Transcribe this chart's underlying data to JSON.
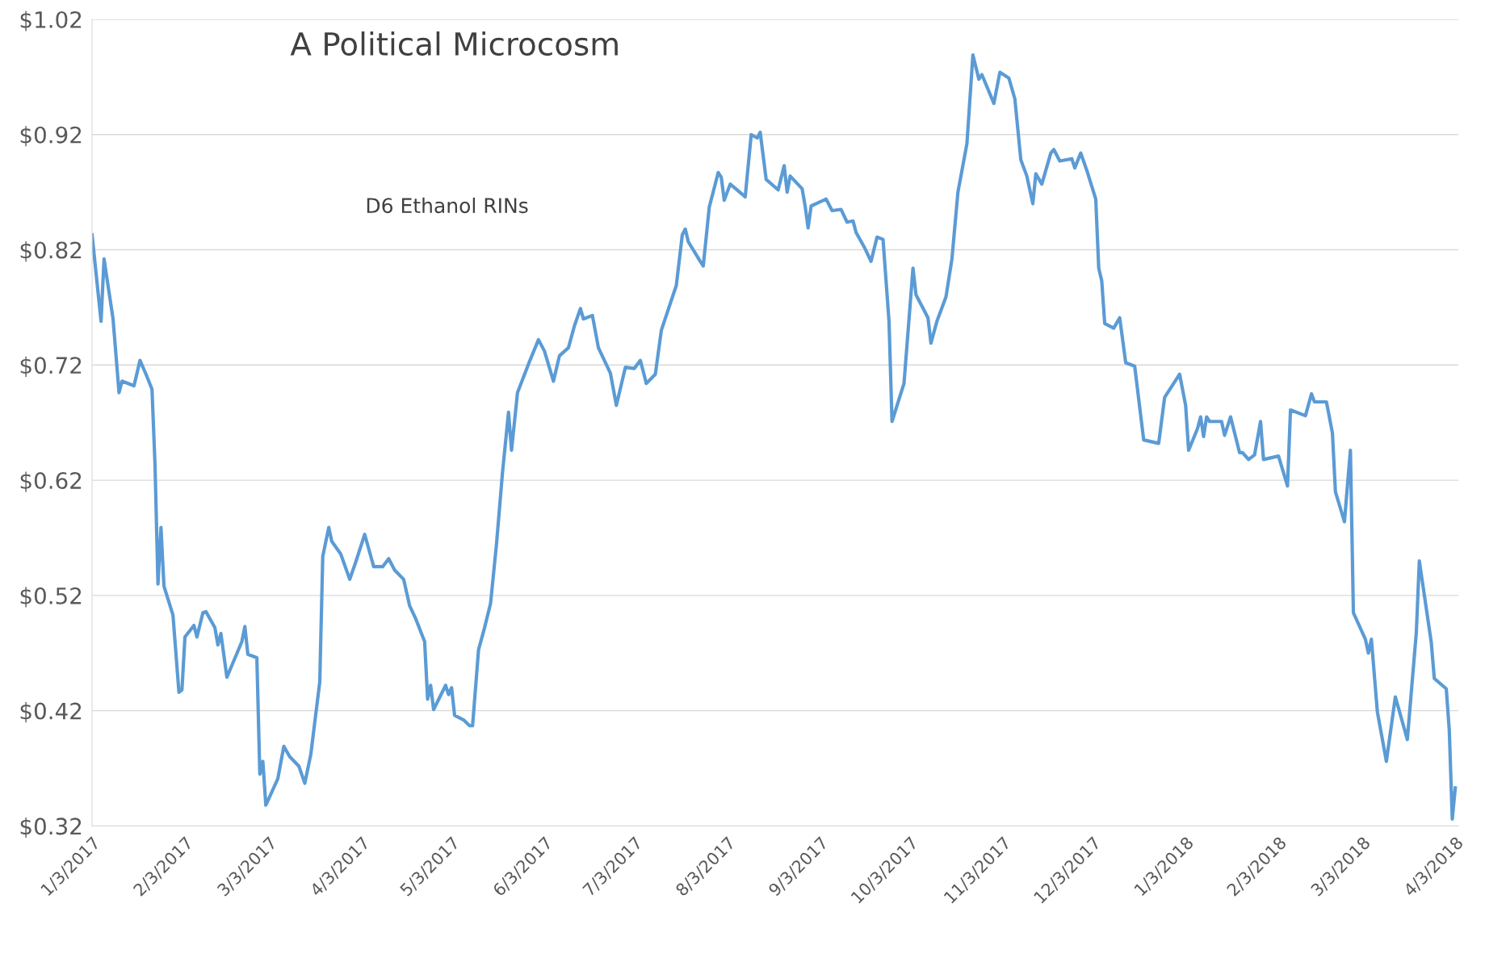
{
  "chart_data": {
    "type": "line",
    "title": "A Political Microcosm",
    "annotations": [
      "D6 Ethanol RINs"
    ],
    "series": [
      {
        "color": "#5b9bd5",
        "x": [
          "2017-01-03",
          "2017-01-06",
          "2017-01-07",
          "2017-01-10",
          "2017-01-12",
          "2017-01-13",
          "2017-01-17",
          "2017-01-19",
          "2017-01-21",
          "2017-01-23",
          "2017-01-24",
          "2017-01-25",
          "2017-01-26",
          "2017-01-27",
          "2017-01-30",
          "2017-02-01",
          "2017-02-02",
          "2017-02-03",
          "2017-02-06",
          "2017-02-07",
          "2017-02-09",
          "2017-02-10",
          "2017-02-13",
          "2017-02-14",
          "2017-02-15",
          "2017-02-17",
          "2017-02-22",
          "2017-02-23",
          "2017-02-24",
          "2017-02-27",
          "2017-02-28",
          "2017-03-01",
          "2017-03-02",
          "2017-03-06",
          "2017-03-08",
          "2017-03-10",
          "2017-03-13",
          "2017-03-15",
          "2017-03-17",
          "2017-03-20",
          "2017-03-21",
          "2017-03-23",
          "2017-03-24",
          "2017-03-27",
          "2017-03-30",
          "2017-04-01",
          "2017-04-04",
          "2017-04-07",
          "2017-04-10",
          "2017-04-12",
          "2017-04-14",
          "2017-04-17",
          "2017-04-19",
          "2017-04-21",
          "2017-04-24",
          "2017-04-25",
          "2017-04-26",
          "2017-04-27",
          "2017-05-01",
          "2017-05-02",
          "2017-05-03",
          "2017-05-04",
          "2017-05-07",
          "2017-05-09",
          "2017-05-10",
          "2017-05-12",
          "2017-05-14",
          "2017-05-16",
          "2017-05-18",
          "2017-05-20",
          "2017-05-22",
          "2017-05-23",
          "2017-05-25",
          "2017-05-29",
          "2017-06-01",
          "2017-06-03",
          "2017-06-06",
          "2017-06-08",
          "2017-06-11",
          "2017-06-13",
          "2017-06-15",
          "2017-06-16",
          "2017-06-19",
          "2017-06-21",
          "2017-06-25",
          "2017-06-27",
          "2017-06-30",
          "2017-07-03",
          "2017-07-05",
          "2017-07-07",
          "2017-07-10",
          "2017-07-12",
          "2017-07-17",
          "2017-07-19",
          "2017-07-20",
          "2017-07-21",
          "2017-07-25",
          "2017-07-26",
          "2017-07-28",
          "2017-07-31",
          "2017-08-01",
          "2017-08-02",
          "2017-08-04",
          "2017-08-09",
          "2017-08-11",
          "2017-08-13",
          "2017-08-14",
          "2017-08-16",
          "2017-08-20",
          "2017-08-22",
          "2017-08-23",
          "2017-08-24",
          "2017-08-28",
          "2017-08-29",
          "2017-08-30",
          "2017-08-31",
          "2017-09-05",
          "2017-09-07",
          "2017-09-10",
          "2017-09-12",
          "2017-09-14",
          "2017-09-15",
          "2017-09-18",
          "2017-09-20",
          "2017-09-22",
          "2017-09-24",
          "2017-09-26",
          "2017-09-27",
          "2017-10-01",
          "2017-10-04",
          "2017-10-05",
          "2017-10-09",
          "2017-10-10",
          "2017-10-12",
          "2017-10-15",
          "2017-10-17",
          "2017-10-19",
          "2017-10-22",
          "2017-10-24",
          "2017-10-26",
          "2017-10-27",
          "2017-10-31",
          "2017-11-02",
          "2017-11-05",
          "2017-11-07",
          "2017-11-09",
          "2017-11-11",
          "2017-11-13",
          "2017-11-14",
          "2017-11-16",
          "2017-11-19",
          "2017-11-20",
          "2017-11-22",
          "2017-11-26",
          "2017-11-27",
          "2017-11-29",
          "2017-12-01",
          "2017-12-04",
          "2017-12-05",
          "2017-12-06",
          "2017-12-07",
          "2017-12-10",
          "2017-12-12",
          "2017-12-14",
          "2017-12-17",
          "2017-12-20",
          "2017-12-25",
          "2017-12-27",
          "2018-01-01",
          "2018-01-03",
          "2018-01-04",
          "2018-01-07",
          "2018-01-08",
          "2018-01-09",
          "2018-01-10",
          "2018-01-11",
          "2018-01-15",
          "2018-01-16",
          "2018-01-18",
          "2018-01-21",
          "2018-01-22",
          "2018-01-24",
          "2018-01-26",
          "2018-01-28",
          "2018-01-29",
          "2018-02-03",
          "2018-02-06",
          "2018-02-07",
          "2018-02-12",
          "2018-02-14",
          "2018-02-15",
          "2018-02-19",
          "2018-02-21",
          "2018-02-22",
          "2018-02-25",
          "2018-02-27",
          "2018-02-28",
          "2018-03-04",
          "2018-03-05",
          "2018-03-06",
          "2018-03-08",
          "2018-03-11",
          "2018-03-14",
          "2018-03-18",
          "2018-03-21",
          "2018-03-22",
          "2018-03-26",
          "2018-03-27",
          "2018-03-31",
          "2018-04-01",
          "2018-04-02",
          "2018-04-03"
        ],
        "values": [
          0.833,
          0.758,
          0.812,
          0.76,
          0.696,
          0.706,
          0.702,
          0.724,
          0.712,
          0.699,
          0.634,
          0.53,
          0.579,
          0.528,
          0.503,
          0.436,
          0.438,
          0.484,
          0.494,
          0.484,
          0.505,
          0.506,
          0.492,
          0.477,
          0.487,
          0.449,
          0.48,
          0.493,
          0.469,
          0.466,
          0.365,
          0.376,
          0.338,
          0.361,
          0.389,
          0.38,
          0.372,
          0.357,
          0.382,
          0.445,
          0.554,
          0.579,
          0.567,
          0.556,
          0.534,
          0.549,
          0.573,
          0.545,
          0.545,
          0.552,
          0.542,
          0.534,
          0.511,
          0.5,
          0.48,
          0.43,
          0.442,
          0.421,
          0.442,
          0.434,
          0.44,
          0.416,
          0.412,
          0.407,
          0.407,
          0.473,
          0.492,
          0.513,
          0.565,
          0.627,
          0.679,
          0.646,
          0.696,
          0.723,
          0.742,
          0.732,
          0.706,
          0.728,
          0.735,
          0.754,
          0.769,
          0.76,
          0.763,
          0.735,
          0.713,
          0.685,
          0.718,
          0.717,
          0.724,
          0.704,
          0.712,
          0.75,
          0.789,
          0.833,
          0.838,
          0.827,
          0.81,
          0.806,
          0.857,
          0.887,
          0.883,
          0.863,
          0.877,
          0.866,
          0.92,
          0.917,
          0.922,
          0.881,
          0.872,
          0.893,
          0.87,
          0.884,
          0.873,
          0.858,
          0.839,
          0.858,
          0.864,
          0.854,
          0.855,
          0.844,
          0.845,
          0.835,
          0.821,
          0.81,
          0.831,
          0.829,
          0.758,
          0.671,
          0.704,
          0.804,
          0.781,
          0.761,
          0.739,
          0.758,
          0.779,
          0.812,
          0.87,
          0.912,
          0.989,
          0.968,
          0.972,
          0.947,
          0.974,
          0.969,
          0.951,
          0.898,
          0.884,
          0.86,
          0.886,
          0.877,
          0.904,
          0.907,
          0.897,
          0.899,
          0.891,
          0.904,
          0.889,
          0.864,
          0.804,
          0.793,
          0.756,
          0.752,
          0.761,
          0.722,
          0.719,
          0.655,
          0.652,
          0.692,
          0.712,
          0.685,
          0.646,
          0.665,
          0.675,
          0.658,
          0.675,
          0.671,
          0.671,
          0.659,
          0.675,
          0.644,
          0.644,
          0.638,
          0.642,
          0.671,
          0.638,
          0.641,
          0.615,
          0.681,
          0.676,
          0.695,
          0.688,
          0.688,
          0.661,
          0.61,
          0.584,
          0.646,
          0.505,
          0.482,
          0.47,
          0.482,
          0.419,
          0.376,
          0.432,
          0.395,
          0.488,
          0.55,
          0.479,
          0.448,
          0.439,
          0.403,
          0.326,
          0.353
        ]
      }
    ],
    "xlim": [
      "2017-01-03",
      "2018-04-04"
    ],
    "xticks": [
      {
        "value": "2017-01-03",
        "label": "1/3/2017"
      },
      {
        "value": "2017-02-03",
        "label": "2/3/2017"
      },
      {
        "value": "2017-03-03",
        "label": "3/3/2017"
      },
      {
        "value": "2017-04-03",
        "label": "4/3/2017"
      },
      {
        "value": "2017-05-03",
        "label": "5/3/2017"
      },
      {
        "value": "2017-06-03",
        "label": "6/3/2017"
      },
      {
        "value": "2017-07-03",
        "label": "7/3/2017"
      },
      {
        "value": "2017-08-03",
        "label": "8/3/2017"
      },
      {
        "value": "2017-09-03",
        "label": "9/3/2017"
      },
      {
        "value": "2017-10-03",
        "label": "10/3/2017"
      },
      {
        "value": "2017-11-03",
        "label": "11/3/2017"
      },
      {
        "value": "2017-12-03",
        "label": "12/3/2017"
      },
      {
        "value": "2018-01-03",
        "label": "1/3/2018"
      },
      {
        "value": "2018-02-03",
        "label": "2/3/2018"
      },
      {
        "value": "2018-03-03",
        "label": "3/3/2018"
      },
      {
        "value": "2018-04-03",
        "label": "4/3/2018"
      }
    ],
    "ylim": [
      0.32,
      1.02
    ],
    "yticks": [
      {
        "value": 0.32,
        "label": "$0.32"
      },
      {
        "value": 0.42,
        "label": "$0.42"
      },
      {
        "value": 0.52,
        "label": "$0.52"
      },
      {
        "value": 0.62,
        "label": "$0.62"
      },
      {
        "value": 0.72,
        "label": "$0.72"
      },
      {
        "value": 0.82,
        "label": "$0.82"
      },
      {
        "value": 0.92,
        "label": "$0.92"
      },
      {
        "value": 1.02,
        "label": "$1.02"
      }
    ],
    "grid": "y",
    "marker": "none",
    "line_style": "solid"
  }
}
